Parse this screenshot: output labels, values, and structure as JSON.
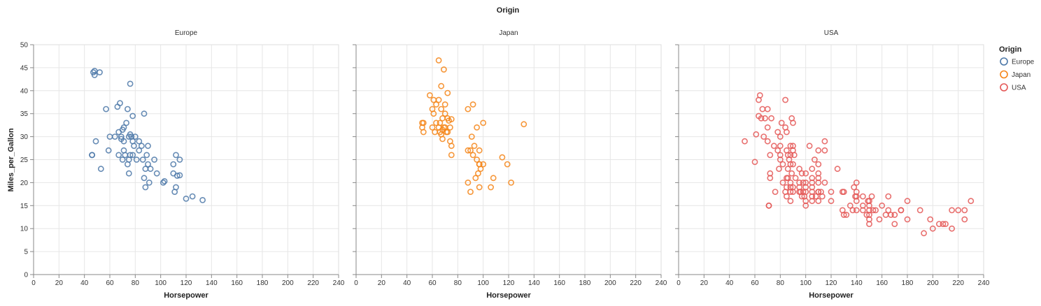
{
  "chart_data": {
    "type": "scatter",
    "title": "Origin",
    "xlabel": "Horsepower",
    "ylabel": "Miles_per_Gallon",
    "xlim": [
      0,
      240
    ],
    "ylim": [
      0,
      50
    ],
    "x_ticks": [
      0,
      20,
      40,
      60,
      80,
      100,
      120,
      140,
      160,
      180,
      200,
      220,
      240
    ],
    "y_ticks": [
      0,
      5,
      10,
      15,
      20,
      25,
      30,
      35,
      40,
      45,
      50
    ],
    "grid": true,
    "legend": {
      "title": "Origin",
      "placement": "right",
      "entries": [
        {
          "label": "Europe",
          "color": "#4c78a8"
        },
        {
          "label": "Japan",
          "color": "#f58518"
        },
        {
          "label": "USA",
          "color": "#e45756"
        }
      ]
    },
    "facets": [
      {
        "name": "Europe",
        "color": "#4c78a8",
        "points": [
          [
            46,
            26
          ],
          [
            46,
            26
          ],
          [
            47,
            44
          ],
          [
            48,
            43.4
          ],
          [
            48,
            44.3
          ],
          [
            49,
            29
          ],
          [
            52,
            44
          ],
          [
            53,
            23
          ],
          [
            57,
            36
          ],
          [
            59,
            27
          ],
          [
            60,
            30
          ],
          [
            64,
            30
          ],
          [
            66,
            36.5
          ],
          [
            67,
            26
          ],
          [
            67,
            31
          ],
          [
            68,
            37.3
          ],
          [
            69,
            30
          ],
          [
            69,
            29.5
          ],
          [
            70,
            31.5
          ],
          [
            70,
            25
          ],
          [
            71,
            32
          ],
          [
            71,
            29
          ],
          [
            71,
            27
          ],
          [
            72,
            26
          ],
          [
            73,
            33
          ],
          [
            74,
            36
          ],
          [
            74,
            24
          ],
          [
            75,
            25
          ],
          [
            75,
            22
          ],
          [
            75,
            30
          ],
          [
            76,
            30.5
          ],
          [
            76,
            26
          ],
          [
            76,
            41.5
          ],
          [
            77,
            30
          ],
          [
            78,
            26
          ],
          [
            78,
            34.5
          ],
          [
            78,
            29
          ],
          [
            79,
            28
          ],
          [
            80,
            30
          ],
          [
            81,
            25
          ],
          [
            83,
            27
          ],
          [
            83,
            29
          ],
          [
            85,
            28
          ],
          [
            86,
            25
          ],
          [
            87,
            21
          ],
          [
            87,
            35
          ],
          [
            88,
            23
          ],
          [
            88,
            19
          ],
          [
            89,
            26
          ],
          [
            90,
            24
          ],
          [
            90,
            28
          ],
          [
            91,
            20
          ],
          [
            92,
            23
          ],
          [
            95,
            25
          ],
          [
            97,
            22
          ],
          [
            102,
            20
          ],
          [
            103,
            20.3
          ],
          [
            110,
            22
          ],
          [
            110,
            24
          ],
          [
            111,
            18
          ],
          [
            112,
            26
          ],
          [
            112,
            19
          ],
          [
            113,
            21.5
          ],
          [
            115,
            25
          ],
          [
            115,
            21.6
          ],
          [
            120,
            16.5
          ],
          [
            125,
            17
          ],
          [
            133,
            16.2
          ]
        ]
      },
      {
        "name": "Japan",
        "color": "#f58518",
        "points": [
          [
            52,
            33
          ],
          [
            52,
            32
          ],
          [
            53,
            31
          ],
          [
            53,
            33
          ],
          [
            58,
            39
          ],
          [
            60,
            36
          ],
          [
            60,
            32
          ],
          [
            61,
            35
          ],
          [
            61,
            38
          ],
          [
            62,
            31
          ],
          [
            63,
            33
          ],
          [
            63,
            37
          ],
          [
            65,
            46.6
          ],
          [
            65,
            32
          ],
          [
            65,
            38
          ],
          [
            66,
            33
          ],
          [
            66,
            31
          ],
          [
            67,
            41
          ],
          [
            67,
            36
          ],
          [
            67,
            30.5
          ],
          [
            68,
            29.5
          ],
          [
            68,
            31.5
          ],
          [
            68,
            34
          ],
          [
            69,
            32
          ],
          [
            69,
            44.6
          ],
          [
            70,
            37
          ],
          [
            70,
            35
          ],
          [
            70,
            32
          ],
          [
            71,
            31
          ],
          [
            72,
            34
          ],
          [
            72,
            39.5
          ],
          [
            72,
            31
          ],
          [
            73,
            33.5
          ],
          [
            74,
            32
          ],
          [
            74,
            29
          ],
          [
            75,
            26
          ],
          [
            75,
            33.8
          ],
          [
            75,
            28
          ],
          [
            88,
            36
          ],
          [
            88,
            27
          ],
          [
            88,
            20
          ],
          [
            90,
            18
          ],
          [
            90,
            27
          ],
          [
            91,
            30
          ],
          [
            92,
            37
          ],
          [
            92,
            26
          ],
          [
            93,
            28
          ],
          [
            94,
            21
          ],
          [
            95,
            25
          ],
          [
            95,
            32
          ],
          [
            96,
            22
          ],
          [
            97,
            24
          ],
          [
            97,
            27
          ],
          [
            97,
            24
          ],
          [
            97,
            19
          ],
          [
            98,
            23
          ],
          [
            100,
            33
          ],
          [
            100,
            24
          ],
          [
            106,
            19
          ],
          [
            108,
            21
          ],
          [
            115,
            25.5
          ],
          [
            119,
            24
          ],
          [
            122,
            20
          ],
          [
            132,
            32.7
          ]
        ]
      },
      {
        "name": "USA",
        "color": "#e45756",
        "points": [
          [
            52,
            29
          ],
          [
            60,
            24.5
          ],
          [
            61,
            30.5
          ],
          [
            63,
            38
          ],
          [
            63,
            34.5
          ],
          [
            64,
            39
          ],
          [
            65,
            34
          ],
          [
            66,
            36
          ],
          [
            67,
            30
          ],
          [
            68,
            34
          ],
          [
            70,
            32
          ],
          [
            70,
            29
          ],
          [
            70,
            36
          ],
          [
            71,
            15
          ],
          [
            71,
            15
          ],
          [
            72,
            22
          ],
          [
            72,
            21
          ],
          [
            72,
            26
          ],
          [
            73,
            34
          ],
          [
            75,
            28
          ],
          [
            76,
            18
          ],
          [
            78,
            27
          ],
          [
            78,
            31
          ],
          [
            79,
            23
          ],
          [
            80,
            30
          ],
          [
            80,
            26
          ],
          [
            80,
            25
          ],
          [
            80,
            28
          ],
          [
            81,
            33
          ],
          [
            82,
            20
          ],
          [
            82,
            24
          ],
          [
            84,
            32
          ],
          [
            84,
            38
          ],
          [
            84,
            18
          ],
          [
            85,
            17
          ],
          [
            85,
            27
          ],
          [
            85,
            19
          ],
          [
            85,
            21
          ],
          [
            85,
            31
          ],
          [
            86,
            26
          ],
          [
            86,
            21
          ],
          [
            86,
            23
          ],
          [
            87,
            25
          ],
          [
            88,
            28
          ],
          [
            88,
            19
          ],
          [
            88,
            20
          ],
          [
            88,
            26
          ],
          [
            88,
            16
          ],
          [
            88,
            24
          ],
          [
            88,
            18
          ],
          [
            89,
            34
          ],
          [
            89,
            22
          ],
          [
            90,
            28
          ],
          [
            90,
            18
          ],
          [
            90,
            24
          ],
          [
            90,
            19
          ],
          [
            90,
            33
          ],
          [
            90,
            27
          ],
          [
            91,
            26
          ],
          [
            92,
            21
          ],
          [
            95,
            23
          ],
          [
            95,
            19
          ],
          [
            95,
            18
          ],
          [
            95,
            20
          ],
          [
            96,
            18
          ],
          [
            97,
            17
          ],
          [
            97,
            22
          ],
          [
            98,
            18
          ],
          [
            98,
            20
          ],
          [
            99,
            17
          ],
          [
            100,
            20
          ],
          [
            100,
            16
          ],
          [
            100,
            19
          ],
          [
            100,
            18
          ],
          [
            100,
            22
          ],
          [
            100,
            15
          ],
          [
            103,
            28
          ],
          [
            105,
            23
          ],
          [
            105,
            19
          ],
          [
            105,
            17
          ],
          [
            105,
            20
          ],
          [
            105,
            18
          ],
          [
            105,
            21
          ],
          [
            105,
            16
          ],
          [
            107,
            25
          ],
          [
            108,
            17
          ],
          [
            110,
            22
          ],
          [
            110,
            18
          ],
          [
            110,
            20
          ],
          [
            110,
            21
          ],
          [
            110,
            18
          ],
          [
            110,
            24
          ],
          [
            110,
            16
          ],
          [
            110,
            27
          ],
          [
            112,
            18
          ],
          [
            113,
            17
          ],
          [
            115,
            29
          ],
          [
            115,
            27
          ],
          [
            115,
            20
          ],
          [
            120,
            16
          ],
          [
            120,
            18
          ],
          [
            125,
            23
          ],
          [
            129,
            18
          ],
          [
            129,
            14
          ],
          [
            130,
            18
          ],
          [
            130,
            13
          ],
          [
            132,
            13
          ],
          [
            135,
            15
          ],
          [
            137,
            14
          ],
          [
            138,
            19
          ],
          [
            139,
            17
          ],
          [
            140,
            20
          ],
          [
            140,
            18
          ],
          [
            140,
            16
          ],
          [
            140,
            14
          ],
          [
            140,
            17
          ],
          [
            145,
            17
          ],
          [
            145,
            15
          ],
          [
            145,
            14
          ],
          [
            148,
            13
          ],
          [
            149,
            16
          ],
          [
            150,
            15
          ],
          [
            150,
            14
          ],
          [
            150,
            13
          ],
          [
            150,
            12
          ],
          [
            150,
            16
          ],
          [
            150,
            11
          ],
          [
            152,
            17
          ],
          [
            153,
            14
          ],
          [
            155,
            14
          ],
          [
            158,
            12
          ],
          [
            160,
            15
          ],
          [
            163,
            13
          ],
          [
            165,
            14
          ],
          [
            165,
            17
          ],
          [
            167,
            13
          ],
          [
            170,
            13
          ],
          [
            170,
            11
          ],
          [
            175,
            14
          ],
          [
            175,
            14
          ],
          [
            180,
            12
          ],
          [
            180,
            16
          ],
          [
            190,
            14
          ],
          [
            193,
            9
          ],
          [
            198,
            12
          ],
          [
            200,
            10
          ],
          [
            205,
            11
          ],
          [
            208,
            11
          ],
          [
            210,
            11
          ],
          [
            215,
            10
          ],
          [
            215,
            14
          ],
          [
            220,
            14
          ],
          [
            225,
            14
          ],
          [
            225,
            12
          ],
          [
            230,
            16
          ]
        ]
      }
    ]
  }
}
